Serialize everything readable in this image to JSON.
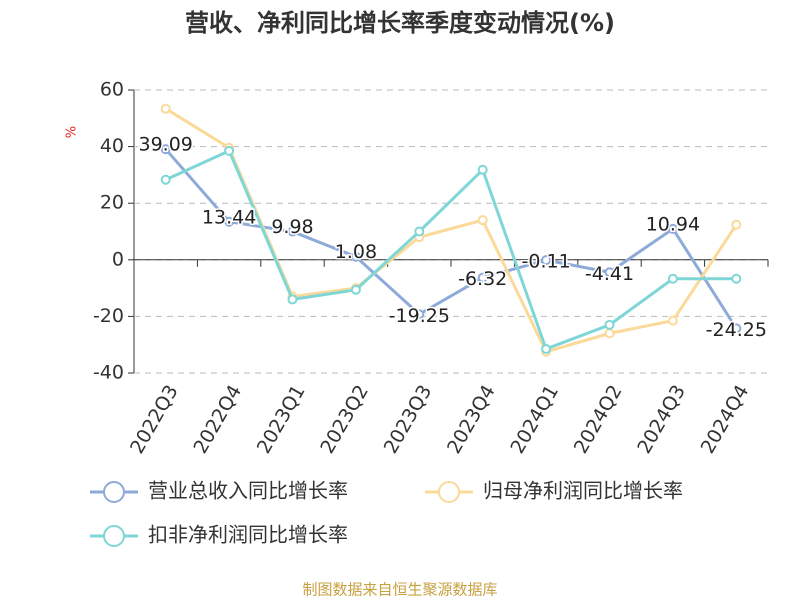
{
  "chart_data": {
    "type": "line",
    "title": "营收、净利同比增长率季度变动情况(%)",
    "y_label": "%",
    "source": "制图数据来自恒生聚源数据库",
    "categories": [
      "2022Q3",
      "2022Q4",
      "2023Q1",
      "2023Q2",
      "2023Q3",
      "2023Q4",
      "2024Q1",
      "2024Q2",
      "2024Q3",
      "2024Q4"
    ],
    "series": [
      {
        "name": "营业总收入同比增长率",
        "color": "#8eaad8",
        "show_labels": true,
        "values": [
          39.09,
          13.44,
          9.98,
          1.08,
          -19.25,
          -6.32,
          -0.11,
          -4.41,
          10.94,
          -24.25
        ]
      },
      {
        "name": "归母净利润同比增长率",
        "color": "#fbd999",
        "show_labels": false,
        "values": [
          53.4,
          39.6,
          -13,
          -10,
          8,
          14,
          -32.5,
          -26,
          -21.5,
          12.4
        ]
      },
      {
        "name": "扣非净利润同比增长率",
        "color": "#7fd6d6",
        "show_labels": false,
        "values": [
          28.3,
          38.5,
          -14,
          -10.6,
          10,
          31.8,
          -31.5,
          -23,
          -6.7,
          -6.7
        ]
      }
    ],
    "ylim": [
      -40,
      60
    ],
    "yticks": [
      -40,
      -20,
      0,
      20,
      40,
      60
    ],
    "grid": true
  }
}
